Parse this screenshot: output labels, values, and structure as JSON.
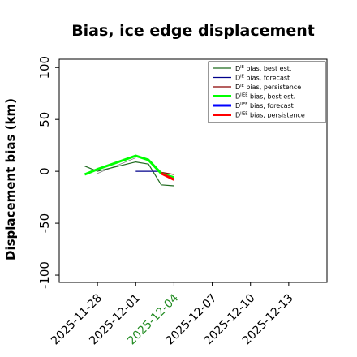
{
  "chart_data": {
    "type": "line",
    "title": "Bias, ice edge displacement",
    "xlabel": "",
    "ylabel": "Displacement bias (km)",
    "ylim": [
      -107,
      108
    ],
    "xlim": [
      "2025-11-25",
      "2025-12-16"
    ],
    "yticks": [
      100,
      50,
      0,
      -50,
      -100
    ],
    "xticks": [
      "2025-11-28",
      "2025-12-01",
      "2025-12-04",
      "2025-12-07",
      "2025-12-10",
      "2025-12-13"
    ],
    "highlight_tick": "2025-12-04",
    "highlight_color": "#228B22",
    "grid": false,
    "legend_position": "top-right",
    "series": [
      {
        "name": "D^IE bias, best est.",
        "sup": "IE",
        "label": "bias, best est.",
        "color": "#1f6b1f",
        "width": 1.2,
        "points": [
          [
            "2025-11-27",
            5
          ],
          [
            "2025-11-28",
            0
          ],
          [
            "2025-12-01",
            9
          ],
          [
            "2025-12-02",
            7
          ],
          [
            "2025-12-03",
            -13
          ],
          [
            "2025-12-04",
            -14
          ]
        ]
      },
      {
        "name": "D^IE bias, forecast",
        "sup": "IE",
        "label": "bias, forecast",
        "color": "#00008b",
        "width": 1.2,
        "points": [
          [
            "2025-12-01",
            0
          ],
          [
            "2025-12-03",
            0
          ]
        ]
      },
      {
        "name": "D^IE bias, persistence",
        "sup": "IE",
        "label": "bias, persistence",
        "color": "#8b0000",
        "width": 1.2,
        "points": [
          [
            "2025-12-03",
            -1
          ],
          [
            "2025-12-04",
            -3
          ]
        ]
      },
      {
        "name": "D^IIEE bias, best est.",
        "sup": "IIEE",
        "label": "bias, best est.",
        "color": "#00ff00",
        "width": 3,
        "points": [
          [
            "2025-11-27",
            -3
          ],
          [
            "2025-11-28",
            2
          ],
          [
            "2025-12-01",
            15
          ],
          [
            "2025-12-02",
            11
          ],
          [
            "2025-12-03",
            -2
          ],
          [
            "2025-12-04",
            -6
          ]
        ]
      },
      {
        "name": "D^IIEE bias, forecast",
        "sup": "IIEE",
        "label": "bias, forecast",
        "color": "#0000ff",
        "width": 3,
        "points": []
      },
      {
        "name": "D^IIEE bias, persistence",
        "sup": "IIEE",
        "label": "bias, persistence",
        "color": "#ff0000",
        "width": 3,
        "points": [
          [
            "2025-12-03",
            -2
          ],
          [
            "2025-12-04",
            -8
          ]
        ]
      }
    ],
    "thin_connector": {
      "color": "#808080",
      "points": [
        [
          "2025-11-28",
          -2
        ],
        [
          "2025-12-01",
          13
        ]
      ]
    }
  }
}
